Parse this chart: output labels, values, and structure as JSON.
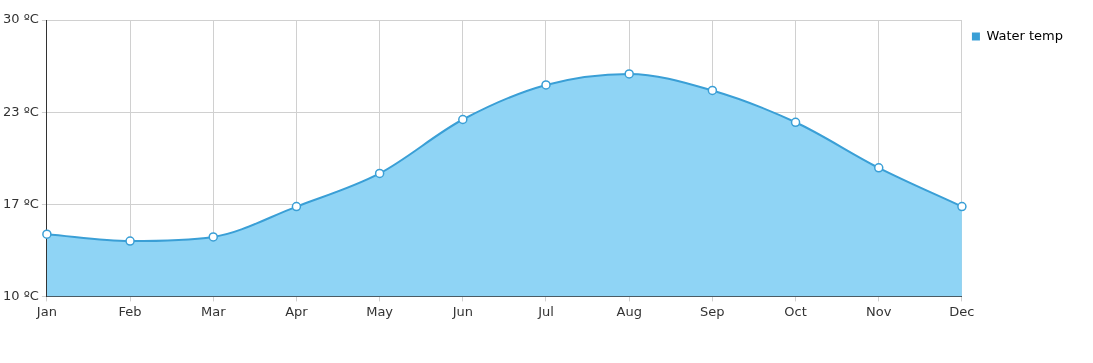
{
  "chart_data": {
    "type": "area",
    "categories": [
      "Jan",
      "Feb",
      "Mar",
      "Apr",
      "May",
      "Jun",
      "Jul",
      "Aug",
      "Sep",
      "Oct",
      "Nov",
      "Dec"
    ],
    "series": [
      {
        "name": "Water temp",
        "color": "#3a9fd6",
        "values": [
          14.5,
          14.0,
          14.3,
          16.5,
          18.9,
          22.8,
          25.3,
          26.1,
          24.9,
          22.6,
          19.3,
          16.5
        ]
      }
    ],
    "ylim": [
      10,
      30
    ],
    "yticks": [
      {
        "value": 10,
        "label": "10 ºC"
      },
      {
        "value": 16.67,
        "label": "17 ºC"
      },
      {
        "value": 23.33,
        "label": "23 ºC"
      },
      {
        "value": 30,
        "label": "30 ºC"
      }
    ],
    "grid": true,
    "legend": "top right",
    "marker": "circle"
  }
}
